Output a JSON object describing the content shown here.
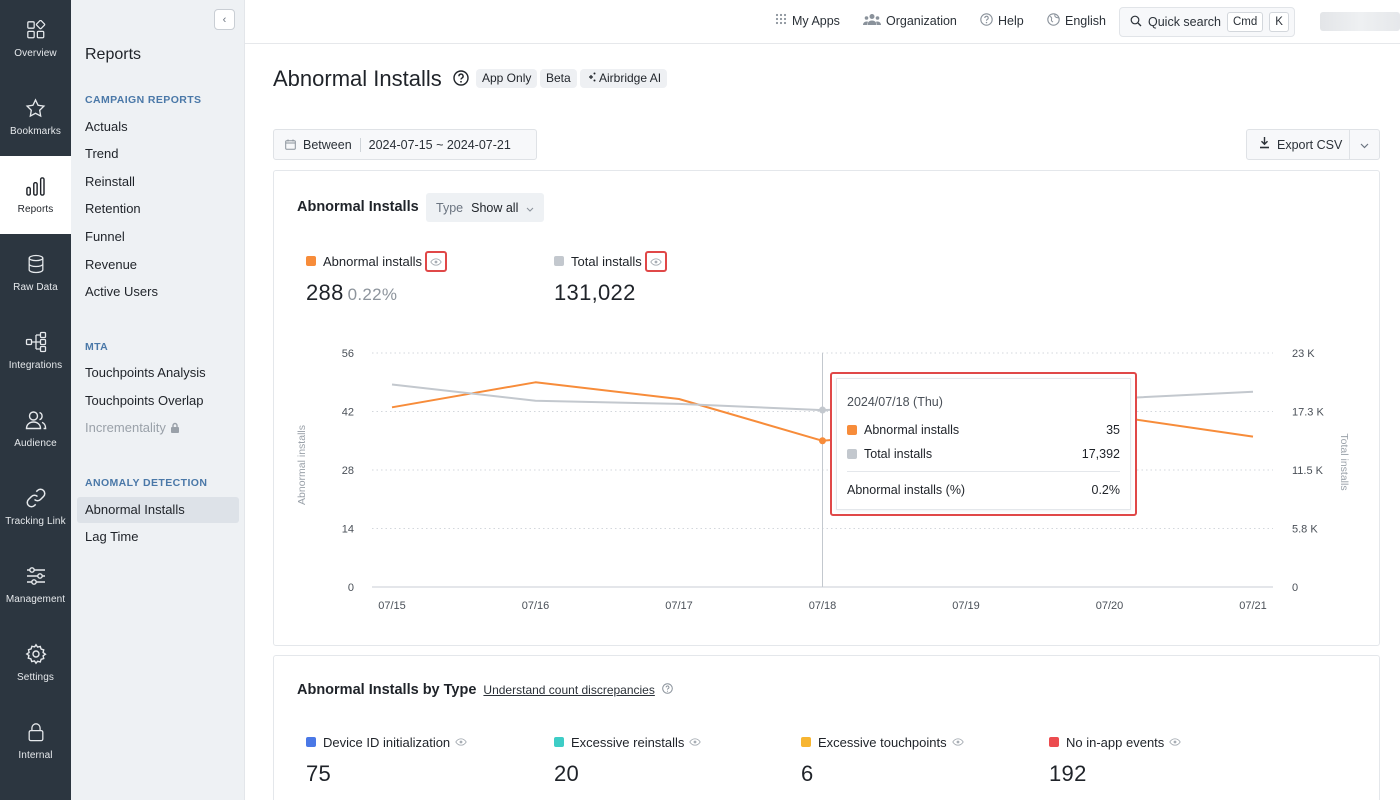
{
  "rail": [
    {
      "label": "Overview",
      "icon": "overview-icon"
    },
    {
      "label": "Bookmarks",
      "icon": "star-icon"
    },
    {
      "label": "Reports",
      "icon": "bar-chart-icon",
      "active": true
    },
    {
      "label": "Raw Data",
      "icon": "database-icon"
    },
    {
      "label": "Integrations",
      "icon": "integrations-icon"
    },
    {
      "label": "Audience",
      "icon": "users-icon"
    },
    {
      "label": "Tracking Link",
      "icon": "link-icon"
    },
    {
      "label": "Management",
      "icon": "sliders-icon"
    },
    {
      "label": "Settings",
      "icon": "gear-icon"
    },
    {
      "label": "Internal",
      "icon": "lock-icon"
    }
  ],
  "sidebar": {
    "title": "Reports",
    "sections": [
      {
        "label": "CAMPAIGN REPORTS",
        "items": [
          "Actuals",
          "Trend",
          "Reinstall",
          "Retention",
          "Funnel",
          "Revenue",
          "Active Users"
        ]
      },
      {
        "label": "MTA",
        "items": [
          "Touchpoints Analysis",
          "Touchpoints Overlap",
          "Incrementality"
        ]
      },
      {
        "label": "ANOMALY DETECTION",
        "items": [
          "Abnormal Installs",
          "Lag Time"
        ]
      }
    ],
    "active_item": "Abnormal Installs",
    "locked_item": "Incrementality"
  },
  "topbar": {
    "my_apps": "My Apps",
    "organization": "Organization",
    "help": "Help",
    "language": "English",
    "quick_search": "Quick search",
    "kbd_cmd": "Cmd",
    "kbd_k": "K"
  },
  "header": {
    "title": "Abnormal Installs",
    "badges": [
      "App Only",
      "Beta",
      "Airbridge AI"
    ]
  },
  "filters": {
    "between_label": "Between",
    "date_range": "2024-07-15 ~ 2024-07-21",
    "export_label": "Export CSV"
  },
  "chart_card": {
    "title": "Abnormal Installs",
    "type_label": "Type",
    "type_value": "Show all",
    "metrics": [
      {
        "name": "Abnormal installs",
        "value": "288",
        "pct": "0.22%",
        "color": "#f78c3a"
      },
      {
        "name": "Total installs",
        "value": "131,022",
        "color": "#c3c8ce"
      }
    ],
    "tooltip": {
      "date": "2024/07/18 (Thu)",
      "rows": [
        {
          "name": "Abnormal installs",
          "value": "35",
          "color": "#f78c3a"
        },
        {
          "name": "Total installs",
          "value": "17,392",
          "color": "#c3c8ce"
        }
      ],
      "ratio_name": "Abnormal installs (%)",
      "ratio_value": "0.2%"
    }
  },
  "chart_data": {
    "type": "line",
    "x": [
      "07/15",
      "07/16",
      "07/17",
      "07/18",
      "07/19",
      "07/20",
      "07/21"
    ],
    "series": [
      {
        "name": "Abnormal installs",
        "axis": "left",
        "color": "#f78c3a",
        "values": [
          43,
          49,
          45,
          35,
          null,
          41,
          36
        ]
      },
      {
        "name": "Total installs",
        "axis": "right",
        "color": "#c3c8ce",
        "values": [
          19900,
          18300,
          18000,
          17392,
          null,
          18500,
          19200
        ]
      }
    ],
    "ylabel": "Abnormal installs",
    "y2label": "Total installs",
    "y_ticks": [
      "0",
      "14",
      "28",
      "42",
      "56"
    ],
    "y2_ticks": [
      "0",
      "5.8 K",
      "11.5 K",
      "17.3 K",
      "23 K"
    ],
    "ylim": [
      0,
      56
    ],
    "y2lim": [
      0,
      23000
    ],
    "highlight_x": "07/18",
    "grid": true
  },
  "by_type_card": {
    "title": "Abnormal Installs by Type",
    "link": "Understand count discrepancies",
    "metrics": [
      {
        "name": "Device ID initialization",
        "value": "75",
        "color": "#4a78e6"
      },
      {
        "name": "Excessive reinstalls",
        "value": "20",
        "color": "#3ecdc6"
      },
      {
        "name": "Excessive touchpoints",
        "value": "6",
        "color": "#f7b531"
      },
      {
        "name": "No in-app events",
        "value": "192",
        "color": "#ec4c4f"
      }
    ]
  }
}
